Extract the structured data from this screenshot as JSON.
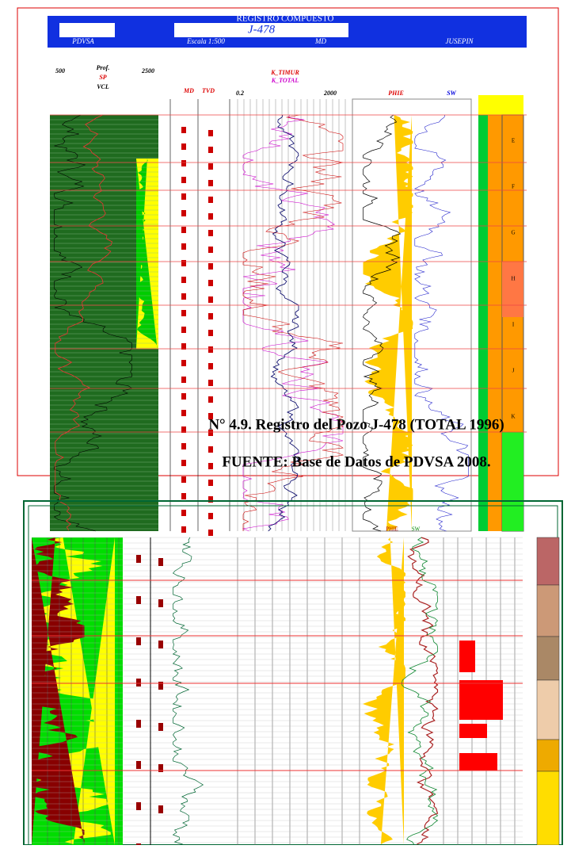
{
  "header": {
    "title": "REGISTRO COMPUESTO",
    "well": "J-478",
    "company": "PDVSA",
    "scale": "Escala 1:500",
    "depth_ref": "MD",
    "field": "JUSEPIN"
  },
  "upper_labels": {
    "gr": "Prof.",
    "gr_min": "500",
    "gr_max": "2500",
    "sp": "SP",
    "vcl": "VCL",
    "md": "MD",
    "tvd": "TVD",
    "k_timur": "K_TIMUR",
    "k_total": "K_TOTAL",
    "phie": "PHIE",
    "sw": "SW",
    "res_min": "0.2",
    "res_max": "2000"
  },
  "upper_zones": [
    "E",
    "F",
    "G",
    "H",
    "I",
    "J",
    "K"
  ],
  "lower_labels": {
    "phie": "PHIE",
    "sw": "SW"
  },
  "caption": [
    "N° 4.9. Registro del Pozo J-478 (TOTAL 1996)",
    "FUENTE: Base de Datos de PDVSA 2008."
  ]
}
